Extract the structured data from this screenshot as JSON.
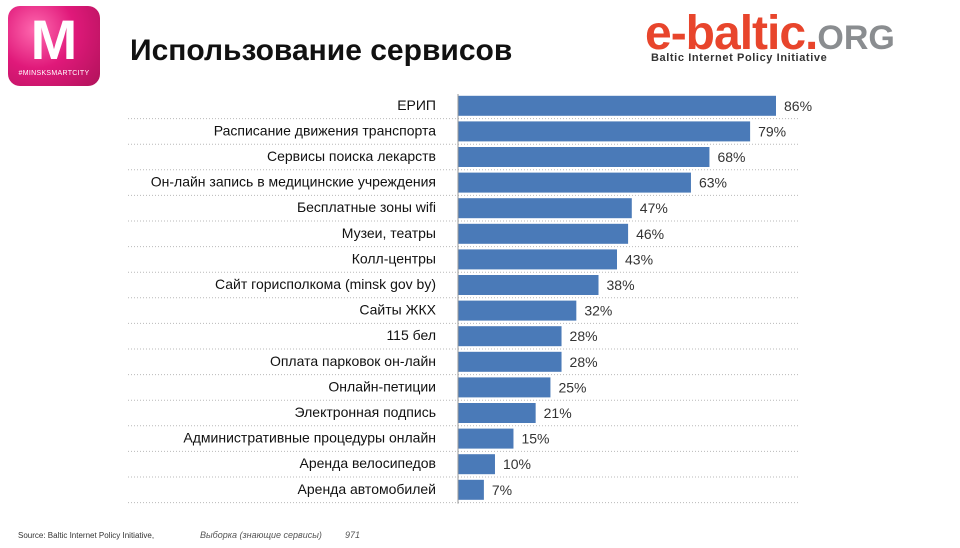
{
  "header": {
    "logo_letter": "M",
    "logo_tag": "#MINSKSMARTCITY",
    "title": "Использование сервисов",
    "brand_main": "e-baltic.",
    "brand_org": "ORG",
    "brand_sub": "Baltic Internet Policy Initiative",
    "colors": {
      "logo": "#e0197a",
      "brand": "#e8452c",
      "brand_org": "#8a8d90"
    }
  },
  "chart_data": {
    "type": "bar",
    "orientation": "horizontal",
    "categories": [
      "ЕРИП",
      "Расписание движения транспорта",
      "Сервисы поиска лекарств",
      "Он-лайн запись в медицинские учреждения",
      "Бесплатные зоны wifi",
      "Музеи,  театры",
      "Колл-центры",
      "Сайт горисполкома (minsk gov by)",
      "Сайты ЖКХ",
      "115 бел",
      "Оплата парковок он-лайн",
      "Онлайн-петиции",
      "Электронная подпись",
      "Административные процедуры онлайн",
      "Аренда велосипедов",
      "Аренда автомобилей"
    ],
    "values": [
      86,
      79,
      68,
      63,
      47,
      46,
      43,
      38,
      32,
      28,
      28,
      25,
      21,
      15,
      10,
      7
    ],
    "value_labels": [
      "86%",
      "79%",
      "68%",
      "63%",
      "47%",
      "46%",
      "43%",
      "38%",
      "32%",
      "28%",
      "28%",
      "25%",
      "21%",
      "15%",
      "10%",
      "7%"
    ],
    "xlim": [
      0,
      86
    ],
    "bar_color": "#4a7ab8",
    "grid": "dotted row separators"
  },
  "footer": {
    "source": "Source: Baltic Internet Policy Initiative,",
    "sample": "Выборка (знающие сервисы)",
    "n": "971"
  }
}
